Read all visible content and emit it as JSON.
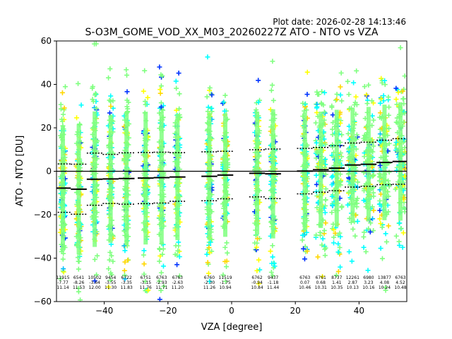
{
  "chart_data": {
    "type": "scatter",
    "title": "S-O3M_GOME_VOD_XX_M03_20260227Z ATO - NTO vs VZA",
    "plot_date": "Plot date: 2026-02-28 14:13:46",
    "xlabel": "VZA [degree]",
    "ylabel": "ATO - NTO [DU]",
    "xlim": [
      -55,
      55
    ],
    "ylim": [
      -60,
      60
    ],
    "xticks": [
      -40,
      -20,
      0,
      20,
      40
    ],
    "yticks": [
      -60,
      -40,
      -20,
      0,
      20,
      40,
      60
    ],
    "grid": false,
    "zero_line": 0,
    "marker_colors": [
      "#7fff7f",
      "#00ffff",
      "#ffff00",
      "#ffd700",
      "#0033ff",
      "#00bfff"
    ],
    "bins": [
      {
        "vza": -53,
        "n": "11915",
        "mean": "-7.77",
        "std": "11.14"
      },
      {
        "vza": -48,
        "n": "6541",
        "mean": "-8.26",
        "std": "11.53"
      },
      {
        "vza": -43,
        "n": "10502",
        "mean": "-3.64",
        "std": "12.00"
      },
      {
        "vza": -38,
        "n": "9454",
        "mean": "-3.55",
        "std": "11.30"
      },
      {
        "vza": -33,
        "n": "6722",
        "mean": "-3.35",
        "std": "11.83"
      },
      {
        "vza": -27,
        "n": "6751",
        "mean": "-3.15",
        "std": "11.76"
      },
      {
        "vza": -22,
        "n": "6763",
        "mean": "-2.93",
        "std": "11.71"
      },
      {
        "vza": -17,
        "n": "6763",
        "mean": "-2.63",
        "std": "11.20"
      },
      {
        "vza": -7,
        "n": "6760",
        "mean": "-2.30",
        "std": "11.26"
      },
      {
        "vza": -2,
        "n": "11519",
        "mean": "-1.75",
        "std": "10.94"
      },
      {
        "vza": 8,
        "n": "6762",
        "mean": "-0.94",
        "std": "10.84"
      },
      {
        "vza": 13,
        "n": "9437",
        "mean": "-1.18",
        "std": "11.44"
      },
      {
        "vza": 23,
        "n": "6763",
        "mean": "0.07",
        "std": "10.46"
      },
      {
        "vza": 28,
        "n": "6761",
        "mean": "0.68",
        "std": "10.31"
      },
      {
        "vza": 33,
        "n": "8737",
        "mean": "1.41",
        "std": "10.35"
      },
      {
        "vza": 38,
        "n": "12261",
        "mean": "2.87",
        "std": "10.13"
      },
      {
        "vza": 43,
        "n": "6980",
        "mean": "3.23",
        "std": "10.16"
      },
      {
        "vza": 48,
        "n": "13877",
        "mean": "4.08",
        "std": "10.24"
      },
      {
        "vza": 53,
        "n": "6763",
        "mean": "4.52",
        "std": "10.48"
      }
    ]
  }
}
